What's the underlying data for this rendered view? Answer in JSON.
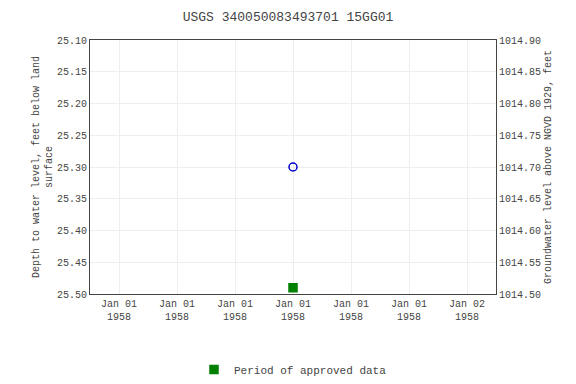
{
  "chart_data": {
    "type": "scatter",
    "title": "USGS 340050083493701 15GG01",
    "y_label": "Depth to water level, feet below land\nsurface",
    "y2_label": "Groundwater level above NGVD 1929, feet",
    "categories": [
      "Jan 01\n1958",
      "Jan 01\n1958",
      "Jan 01\n1958",
      "Jan 01\n1958",
      "Jan 01\n1958",
      "Jan 01\n1958",
      "Jan 02\n1958"
    ],
    "series": [
      {
        "color": "#0000cc",
        "marker": "circle-open",
        "values": [
          null,
          null,
          null,
          25.3,
          null,
          null,
          null
        ]
      },
      {
        "name": "Period of approved data",
        "color": "#008000",
        "marker": "square",
        "values": [
          null,
          null,
          null,
          25.49,
          null,
          null,
          null
        ]
      }
    ],
    "ylim": [
      25.5,
      25.1
    ],
    "yticks": [
      {
        "value": 25.1,
        "label": "25.10"
      },
      25.15,
      {
        "value": 25.2,
        "label": "25.20"
      },
      25.25,
      {
        "value": 25.3,
        "label": "25.30"
      },
      25.35,
      {
        "value": 25.4,
        "label": "25.40"
      },
      25.45,
      {
        "value": 25.5,
        "label": "25.50"
      }
    ],
    "y2lim": [
      1014.5,
      1014.9
    ],
    "y2ticks": [
      {
        "value": 1014.9,
        "label": "1014.90"
      },
      1014.85,
      {
        "value": 1014.8,
        "label": "1014.80"
      },
      1014.75,
      {
        "value": 1014.7,
        "label": "1014.70"
      },
      1014.65,
      {
        "value": 1014.6,
        "label": "1014.60"
      },
      1014.55,
      {
        "value": 1014.5,
        "label": "1014.50"
      }
    ],
    "grid": true,
    "legend": "bottom"
  }
}
